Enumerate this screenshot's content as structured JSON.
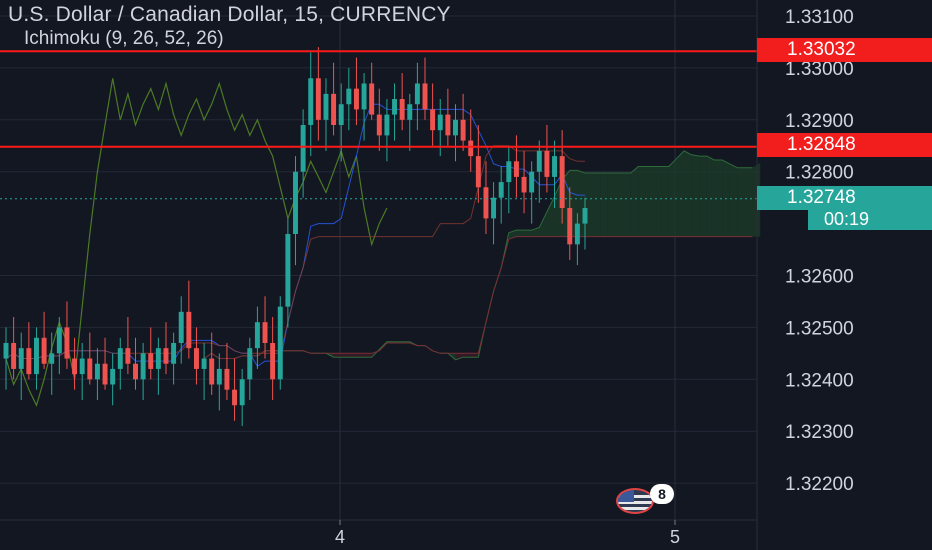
{
  "header": {
    "title": "U.S. Dollar / Canadian Dollar, 15, CURRENCY",
    "indicator": "Ichimoku (9, 26, 52, 26)"
  },
  "price_tags": {
    "upper_line": "1.33032",
    "lower_line": "1.32848",
    "last_price": "1.32748",
    "countdown": "00:19"
  },
  "events_badge": {
    "count": "8",
    "icon": "us-flag-icon"
  },
  "colors": {
    "background": "#131722",
    "up_candle": "#26a69a",
    "down_candle": "#ef5350",
    "horizontal_lines": "#ff1a1a",
    "lagging_span": "#4c7a24",
    "kumo_bull": "#1e3d2a",
    "kumo_bear": "#3d1e2a"
  },
  "chart_data": {
    "type": "candlestick",
    "title": "U.S. Dollar / Canadian Dollar, 15, CURRENCY",
    "xlabel": "",
    "ylabel": "",
    "ylim": [
      1.3215,
      1.3313
    ],
    "y_ticks": [
      "1.33100",
      "1.33000",
      "1.32900",
      "1.32800",
      "1.32600",
      "1.32500",
      "1.32400",
      "1.32300",
      "1.32200"
    ],
    "x_ticks": [
      "4",
      "5"
    ],
    "grid": true,
    "horizontal_lines": [
      1.33032,
      1.32848
    ],
    "last_price": 1.32748,
    "candles": [
      {
        "o": 1.3244,
        "h": 1.325,
        "l": 1.3238,
        "c": 1.3247
      },
      {
        "o": 1.3247,
        "h": 1.3252,
        "l": 1.324,
        "c": 1.3242
      },
      {
        "o": 1.3242,
        "h": 1.3249,
        "l": 1.3236,
        "c": 1.3246
      },
      {
        "o": 1.3246,
        "h": 1.3251,
        "l": 1.324,
        "c": 1.3241
      },
      {
        "o": 1.3241,
        "h": 1.325,
        "l": 1.3238,
        "c": 1.3248
      },
      {
        "o": 1.3248,
        "h": 1.3253,
        "l": 1.3242,
        "c": 1.3243
      },
      {
        "o": 1.3243,
        "h": 1.3249,
        "l": 1.3237,
        "c": 1.3245
      },
      {
        "o": 1.3245,
        "h": 1.3252,
        "l": 1.3241,
        "c": 1.325
      },
      {
        "o": 1.325,
        "h": 1.3255,
        "l": 1.3242,
        "c": 1.3244
      },
      {
        "o": 1.3244,
        "h": 1.3248,
        "l": 1.3238,
        "c": 1.3241
      },
      {
        "o": 1.3241,
        "h": 1.3247,
        "l": 1.3236,
        "c": 1.3244
      },
      {
        "o": 1.3244,
        "h": 1.3249,
        "l": 1.3239,
        "c": 1.324
      },
      {
        "o": 1.324,
        "h": 1.3246,
        "l": 1.3236,
        "c": 1.3243
      },
      {
        "o": 1.3243,
        "h": 1.3248,
        "l": 1.3238,
        "c": 1.3239
      },
      {
        "o": 1.3239,
        "h": 1.3245,
        "l": 1.3235,
        "c": 1.3242
      },
      {
        "o": 1.3242,
        "h": 1.3248,
        "l": 1.3238,
        "c": 1.3246
      },
      {
        "o": 1.3246,
        "h": 1.3252,
        "l": 1.3241,
        "c": 1.3243
      },
      {
        "o": 1.3243,
        "h": 1.3248,
        "l": 1.3238,
        "c": 1.324
      },
      {
        "o": 1.324,
        "h": 1.3247,
        "l": 1.3236,
        "c": 1.3245
      },
      {
        "o": 1.3245,
        "h": 1.325,
        "l": 1.324,
        "c": 1.3242
      },
      {
        "o": 1.3242,
        "h": 1.3248,
        "l": 1.3237,
        "c": 1.3246
      },
      {
        "o": 1.3246,
        "h": 1.3251,
        "l": 1.3241,
        "c": 1.3243
      },
      {
        "o": 1.3243,
        "h": 1.3249,
        "l": 1.3239,
        "c": 1.3247
      },
      {
        "o": 1.3247,
        "h": 1.3256,
        "l": 1.3243,
        "c": 1.3253
      },
      {
        "o": 1.3253,
        "h": 1.3259,
        "l": 1.3244,
        "c": 1.3246
      },
      {
        "o": 1.3246,
        "h": 1.325,
        "l": 1.3239,
        "c": 1.3242
      },
      {
        "o": 1.3242,
        "h": 1.3247,
        "l": 1.3236,
        "c": 1.3244
      },
      {
        "o": 1.3244,
        "h": 1.3249,
        "l": 1.3237,
        "c": 1.3239
      },
      {
        "o": 1.3239,
        "h": 1.3245,
        "l": 1.3234,
        "c": 1.3242
      },
      {
        "o": 1.3242,
        "h": 1.3247,
        "l": 1.3236,
        "c": 1.3238
      },
      {
        "o": 1.3238,
        "h": 1.3244,
        "l": 1.3232,
        "c": 1.3235
      },
      {
        "o": 1.3235,
        "h": 1.3242,
        "l": 1.3231,
        "c": 1.324
      },
      {
        "o": 1.324,
        "h": 1.3248,
        "l": 1.3236,
        "c": 1.3246
      },
      {
        "o": 1.3246,
        "h": 1.3254,
        "l": 1.3242,
        "c": 1.3251
      },
      {
        "o": 1.3251,
        "h": 1.3256,
        "l": 1.3244,
        "c": 1.3247
      },
      {
        "o": 1.3247,
        "h": 1.3252,
        "l": 1.3236,
        "c": 1.324
      },
      {
        "o": 1.324,
        "h": 1.3256,
        "l": 1.3238,
        "c": 1.3254
      },
      {
        "o": 1.3254,
        "h": 1.3271,
        "l": 1.325,
        "c": 1.3268
      },
      {
        "o": 1.3268,
        "h": 1.3283,
        "l": 1.3262,
        "c": 1.328
      },
      {
        "o": 1.328,
        "h": 1.3292,
        "l": 1.3275,
        "c": 1.3289
      },
      {
        "o": 1.3289,
        "h": 1.3303,
        "l": 1.3283,
        "c": 1.3298
      },
      {
        "o": 1.3298,
        "h": 1.3304,
        "l": 1.3286,
        "c": 1.329
      },
      {
        "o": 1.329,
        "h": 1.3298,
        "l": 1.3284,
        "c": 1.3295
      },
      {
        "o": 1.3295,
        "h": 1.3301,
        "l": 1.3287,
        "c": 1.3289
      },
      {
        "o": 1.3289,
        "h": 1.3297,
        "l": 1.3282,
        "c": 1.3293
      },
      {
        "o": 1.3293,
        "h": 1.33,
        "l": 1.3288,
        "c": 1.3296
      },
      {
        "o": 1.3296,
        "h": 1.3302,
        "l": 1.3289,
        "c": 1.3292
      },
      {
        "o": 1.3292,
        "h": 1.3299,
        "l": 1.3286,
        "c": 1.3297
      },
      {
        "o": 1.3297,
        "h": 1.3301,
        "l": 1.329,
        "c": 1.3291
      },
      {
        "o": 1.3291,
        "h": 1.3296,
        "l": 1.3284,
        "c": 1.3287
      },
      {
        "o": 1.3287,
        "h": 1.3294,
        "l": 1.3282,
        "c": 1.3291
      },
      {
        "o": 1.3291,
        "h": 1.3297,
        "l": 1.3286,
        "c": 1.3294
      },
      {
        "o": 1.3294,
        "h": 1.3299,
        "l": 1.3288,
        "c": 1.329
      },
      {
        "o": 1.329,
        "h": 1.3295,
        "l": 1.3284,
        "c": 1.3293
      },
      {
        "o": 1.3293,
        "h": 1.3301,
        "l": 1.3288,
        "c": 1.3297
      },
      {
        "o": 1.3297,
        "h": 1.3302,
        "l": 1.329,
        "c": 1.3292
      },
      {
        "o": 1.3292,
        "h": 1.3297,
        "l": 1.3285,
        "c": 1.3288
      },
      {
        "o": 1.3288,
        "h": 1.3294,
        "l": 1.3283,
        "c": 1.3291
      },
      {
        "o": 1.3291,
        "h": 1.3296,
        "l": 1.3285,
        "c": 1.3287
      },
      {
        "o": 1.3287,
        "h": 1.3293,
        "l": 1.3282,
        "c": 1.329
      },
      {
        "o": 1.329,
        "h": 1.3295,
        "l": 1.3284,
        "c": 1.3286
      },
      {
        "o": 1.3286,
        "h": 1.3292,
        "l": 1.328,
        "c": 1.3283
      },
      {
        "o": 1.3283,
        "h": 1.3289,
        "l": 1.3274,
        "c": 1.3277
      },
      {
        "o": 1.3277,
        "h": 1.3282,
        "l": 1.3268,
        "c": 1.3271
      },
      {
        "o": 1.3271,
        "h": 1.3278,
        "l": 1.3266,
        "c": 1.3275
      },
      {
        "o": 1.3275,
        "h": 1.3281,
        "l": 1.327,
        "c": 1.3278
      },
      {
        "o": 1.3278,
        "h": 1.3285,
        "l": 1.3272,
        "c": 1.3282
      },
      {
        "o": 1.3282,
        "h": 1.3287,
        "l": 1.3275,
        "c": 1.3279
      },
      {
        "o": 1.3279,
        "h": 1.3284,
        "l": 1.3272,
        "c": 1.3276
      },
      {
        "o": 1.3276,
        "h": 1.3282,
        "l": 1.327,
        "c": 1.328
      },
      {
        "o": 1.328,
        "h": 1.3286,
        "l": 1.3274,
        "c": 1.3284
      },
      {
        "o": 1.3284,
        "h": 1.3289,
        "l": 1.3276,
        "c": 1.3279
      },
      {
        "o": 1.3279,
        "h": 1.3286,
        "l": 1.3273,
        "c": 1.3283
      },
      {
        "o": 1.3283,
        "h": 1.3288,
        "l": 1.327,
        "c": 1.3273
      },
      {
        "o": 1.3273,
        "h": 1.3277,
        "l": 1.3263,
        "c": 1.3266
      },
      {
        "o": 1.3266,
        "h": 1.3272,
        "l": 1.3262,
        "c": 1.327
      },
      {
        "o": 1.327,
        "h": 1.3275,
        "l": 1.3265,
        "c": 1.3273
      }
    ]
  }
}
